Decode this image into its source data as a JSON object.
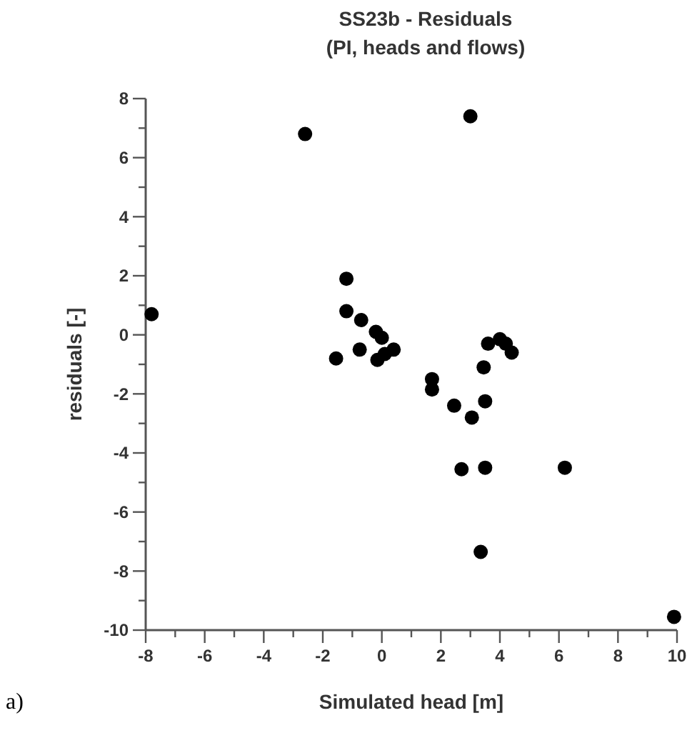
{
  "chart_data": {
    "type": "scatter",
    "title": "SS23b - Residuals\n(PI, heads and flows)",
    "xlabel": "Simulated head [m]",
    "ylabel": "residuals [-]",
    "annotations": [
      "a)"
    ],
    "xlim": [
      -8,
      10
    ],
    "ylim": [
      -10,
      8
    ],
    "xticks": [
      -8,
      {
        "value": -7,
        "label": null
      },
      -6,
      {
        "value": -5,
        "label": null
      },
      -4,
      {
        "value": -3,
        "label": null
      },
      -2,
      {
        "value": -1,
        "label": null
      },
      0,
      {
        "value": 1,
        "label": null
      },
      2,
      {
        "value": 3,
        "label": null
      },
      4,
      {
        "value": 5,
        "label": null
      },
      6,
      {
        "value": 7,
        "label": null
      },
      8,
      {
        "value": 9,
        "label": null
      },
      10
    ],
    "yticks": [
      -10,
      {
        "value": -9,
        "label": null
      },
      -8,
      {
        "value": -7,
        "label": null
      },
      -6,
      {
        "value": -5,
        "label": null
      },
      -4,
      {
        "value": -3,
        "label": null
      },
      -2,
      {
        "value": -1,
        "label": null
      },
      0,
      {
        "value": 1,
        "label": null
      },
      2,
      {
        "value": 3,
        "label": null
      },
      4,
      {
        "value": 5,
        "label": null
      },
      6,
      {
        "value": 7,
        "label": null
      },
      8
    ],
    "grid": false,
    "marker": "circle",
    "series": [
      {
        "color": "#000000",
        "x": [
          -7.8,
          -2.6,
          3.0,
          -1.2,
          -1.2,
          -0.7,
          -1.55,
          -0.75,
          -0.2,
          0.0,
          0.4,
          -0.15,
          0.1,
          1.7,
          1.7,
          2.45,
          3.05,
          3.5,
          3.45,
          3.6,
          4.0,
          4.2,
          4.4,
          2.7,
          3.5,
          6.2,
          3.35,
          9.9
        ],
        "values": [
          0.7,
          6.8,
          7.4,
          1.9,
          0.8,
          0.5,
          -0.8,
          -0.5,
          0.1,
          -0.1,
          -0.5,
          -0.85,
          -0.65,
          -1.5,
          -1.85,
          -2.4,
          -2.8,
          -2.25,
          -1.1,
          -0.3,
          -0.15,
          -0.3,
          -0.6,
          -4.55,
          -4.5,
          -4.5,
          -7.35,
          -9.55
        ]
      }
    ]
  }
}
